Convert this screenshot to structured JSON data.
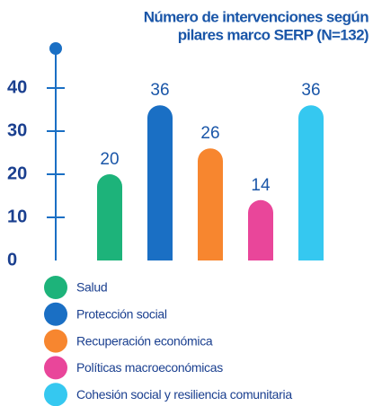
{
  "chart_data": {
    "type": "bar",
    "title_lines": [
      "Número de intervenciones según",
      "pilares marco SERP (N=132)"
    ],
    "categories": [
      "Salud",
      "Protección social",
      "Recuperación económica",
      "Políticas macroeconómicas",
      "Cohesión social y resiliencia comunitaria"
    ],
    "values": [
      20,
      36,
      26,
      14,
      36
    ],
    "colors": [
      "#1db37a",
      "#1a6fc4",
      "#f7862f",
      "#e9469a",
      "#35c8f0"
    ],
    "ylim": [
      0,
      40
    ],
    "yticks": [
      0,
      10,
      20,
      30,
      40
    ]
  }
}
